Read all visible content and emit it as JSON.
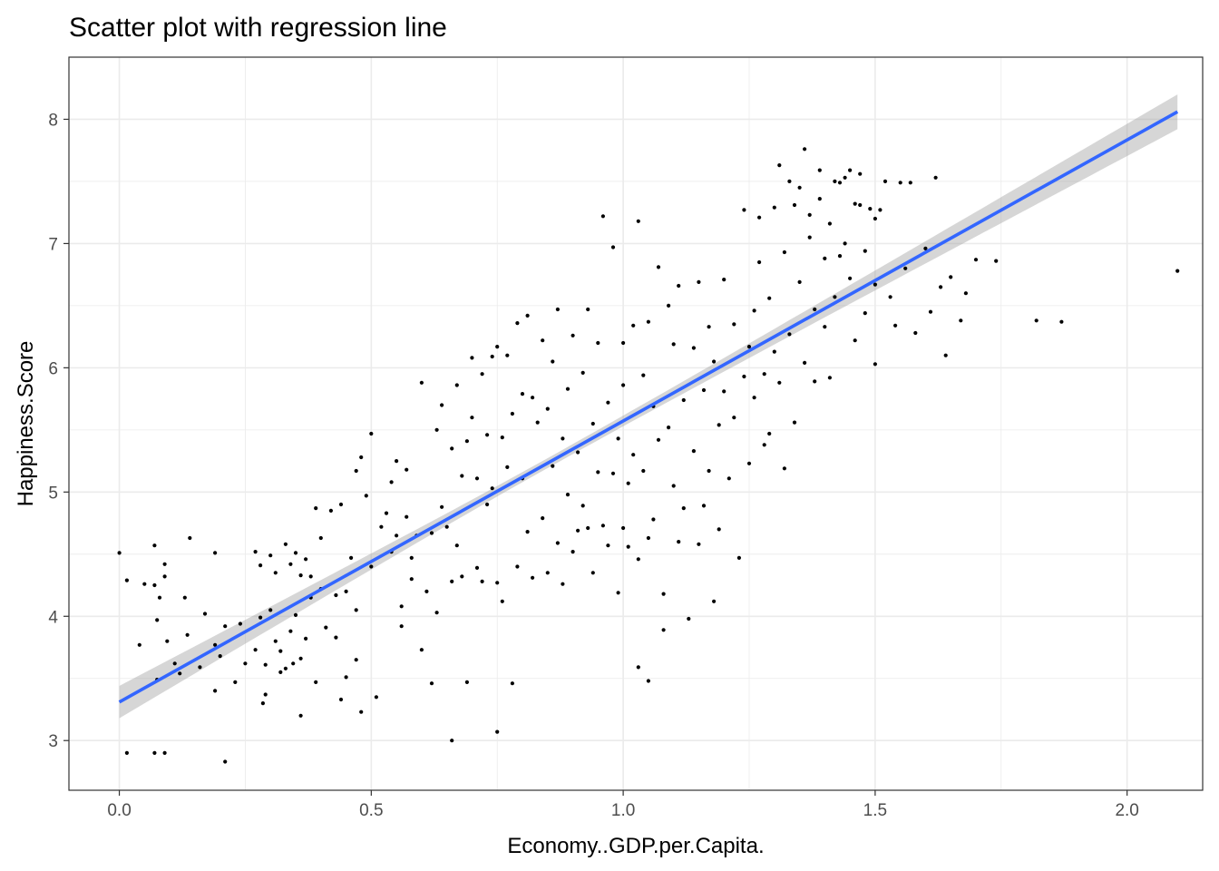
{
  "chart_data": {
    "type": "scatter",
    "title": "Scatter plot with regression line",
    "xlabel": "Economy..GDP.per.Capita.",
    "ylabel": "Happiness.Score",
    "xlim": [
      -0.1,
      2.15
    ],
    "ylim": [
      2.6,
      8.5
    ],
    "x_ticks": [
      0.0,
      0.5,
      1.0,
      1.5,
      2.0
    ],
    "x_tick_labels": [
      "0.0",
      "0.5",
      "1.0",
      "1.5",
      "2.0"
    ],
    "y_ticks": [
      3,
      4,
      5,
      6,
      7,
      8
    ],
    "y_tick_labels": [
      "3",
      "4",
      "5",
      "6",
      "7",
      "8"
    ],
    "grid": true,
    "legend": "none",
    "colors": {
      "points": "#000000",
      "regression_line": "#3366ff",
      "confidence_band": "#999999",
      "grid": "#ebebeb",
      "panel_border": "#333333"
    },
    "regression": {
      "method": "lm",
      "x_range": [
        0.0,
        2.1
      ],
      "intercept": 3.31,
      "slope": 2.262,
      "ci_halfwidth_at_ends": [
        0.13,
        0.14
      ],
      "ci_halfwidth_at_center": 0.04,
      "center_x": 0.85
    },
    "series": [
      {
        "points": [
          [
            0.0,
            4.51
          ],
          [
            0.015,
            4.29
          ],
          [
            0.015,
            2.9
          ],
          [
            0.04,
            3.77
          ],
          [
            0.05,
            4.26
          ],
          [
            0.07,
            4.57
          ],
          [
            0.07,
            4.25
          ],
          [
            0.075,
            3.97
          ],
          [
            0.075,
            3.49
          ],
          [
            0.07,
            2.9
          ],
          [
            0.09,
            2.9
          ],
          [
            0.08,
            4.15
          ],
          [
            0.09,
            4.32
          ],
          [
            0.09,
            4.42
          ],
          [
            0.095,
            3.8
          ],
          [
            0.11,
            3.62
          ],
          [
            0.12,
            3.54
          ],
          [
            0.13,
            4.15
          ],
          [
            0.135,
            3.85
          ],
          [
            0.14,
            4.63
          ],
          [
            0.16,
            3.59
          ],
          [
            0.17,
            4.02
          ],
          [
            0.19,
            3.4
          ],
          [
            0.19,
            3.77
          ],
          [
            0.19,
            4.51
          ],
          [
            0.2,
            3.68
          ],
          [
            0.21,
            2.83
          ],
          [
            0.21,
            3.92
          ],
          [
            0.23,
            3.47
          ],
          [
            0.24,
            3.94
          ],
          [
            0.25,
            3.62
          ],
          [
            0.27,
            3.73
          ],
          [
            0.27,
            4.52
          ],
          [
            0.28,
            3.99
          ],
          [
            0.28,
            4.41
          ],
          [
            0.285,
            3.3
          ],
          [
            0.29,
            3.37
          ],
          [
            0.29,
            3.61
          ],
          [
            0.3,
            4.49
          ],
          [
            0.3,
            4.05
          ],
          [
            0.31,
            4.35
          ],
          [
            0.31,
            3.8
          ],
          [
            0.32,
            3.72
          ],
          [
            0.32,
            3.55
          ],
          [
            0.33,
            3.58
          ],
          [
            0.33,
            4.58
          ],
          [
            0.34,
            4.42
          ],
          [
            0.34,
            3.88
          ],
          [
            0.345,
            3.62
          ],
          [
            0.35,
            4.51
          ],
          [
            0.35,
            4.01
          ],
          [
            0.36,
            3.2
          ],
          [
            0.36,
            3.66
          ],
          [
            0.36,
            4.33
          ],
          [
            0.37,
            3.82
          ],
          [
            0.37,
            4.46
          ],
          [
            0.38,
            4.32
          ],
          [
            0.38,
            4.15
          ],
          [
            0.39,
            3.47
          ],
          [
            0.39,
            4.87
          ],
          [
            0.4,
            4.22
          ],
          [
            0.4,
            4.63
          ],
          [
            0.41,
            3.91
          ],
          [
            0.42,
            4.85
          ],
          [
            0.43,
            4.17
          ],
          [
            0.43,
            3.83
          ],
          [
            0.44,
            3.33
          ],
          [
            0.44,
            4.9
          ],
          [
            0.45,
            4.2
          ],
          [
            0.45,
            3.51
          ],
          [
            0.46,
            4.47
          ],
          [
            0.47,
            3.65
          ],
          [
            0.47,
            5.17
          ],
          [
            0.47,
            4.05
          ],
          [
            0.48,
            5.28
          ],
          [
            0.48,
            3.23
          ],
          [
            0.49,
            4.97
          ],
          [
            0.5,
            5.47
          ],
          [
            0.5,
            4.4
          ],
          [
            0.51,
            3.35
          ],
          [
            0.52,
            4.72
          ],
          [
            0.53,
            4.83
          ],
          [
            0.54,
            5.08
          ],
          [
            0.54,
            4.52
          ],
          [
            0.55,
            4.65
          ],
          [
            0.55,
            5.25
          ],
          [
            0.56,
            4.08
          ],
          [
            0.56,
            3.92
          ],
          [
            0.57,
            4.8
          ],
          [
            0.57,
            5.18
          ],
          [
            0.58,
            4.3
          ],
          [
            0.58,
            4.47
          ],
          [
            0.59,
            4.65
          ],
          [
            0.6,
            5.88
          ],
          [
            0.6,
            3.73
          ],
          [
            0.61,
            4.2
          ],
          [
            0.62,
            4.67
          ],
          [
            0.62,
            3.46
          ],
          [
            0.63,
            5.5
          ],
          [
            0.63,
            4.03
          ],
          [
            0.64,
            5.7
          ],
          [
            0.64,
            4.88
          ],
          [
            0.65,
            4.72
          ],
          [
            0.66,
            5.35
          ],
          [
            0.66,
            4.28
          ],
          [
            0.66,
            3.0
          ],
          [
            0.67,
            5.86
          ],
          [
            0.67,
            4.57
          ],
          [
            0.68,
            5.13
          ],
          [
            0.68,
            4.32
          ],
          [
            0.69,
            5.41
          ],
          [
            0.69,
            3.47
          ],
          [
            0.7,
            6.08
          ],
          [
            0.7,
            5.6
          ],
          [
            0.71,
            5.11
          ],
          [
            0.71,
            4.39
          ],
          [
            0.72,
            5.95
          ],
          [
            0.72,
            4.28
          ],
          [
            0.73,
            5.46
          ],
          [
            0.73,
            4.9
          ],
          [
            0.74,
            6.09
          ],
          [
            0.74,
            5.03
          ],
          [
            0.75,
            6.17
          ],
          [
            0.75,
            4.27
          ],
          [
            0.75,
            3.07
          ],
          [
            0.76,
            5.44
          ],
          [
            0.76,
            4.12
          ],
          [
            0.77,
            6.1
          ],
          [
            0.77,
            5.2
          ],
          [
            0.78,
            5.63
          ],
          [
            0.78,
            3.46
          ],
          [
            0.79,
            4.4
          ],
          [
            0.79,
            6.36
          ],
          [
            0.8,
            5.79
          ],
          [
            0.8,
            5.11
          ],
          [
            0.81,
            6.42
          ],
          [
            0.81,
            4.68
          ],
          [
            0.82,
            5.76
          ],
          [
            0.82,
            4.31
          ],
          [
            0.83,
            5.56
          ],
          [
            0.84,
            6.22
          ],
          [
            0.84,
            4.79
          ],
          [
            0.85,
            5.67
          ],
          [
            0.85,
            4.35
          ],
          [
            0.86,
            6.05
          ],
          [
            0.86,
            5.21
          ],
          [
            0.87,
            4.59
          ],
          [
            0.87,
            6.47
          ],
          [
            0.88,
            5.43
          ],
          [
            0.88,
            4.26
          ],
          [
            0.89,
            5.83
          ],
          [
            0.89,
            4.98
          ],
          [
            0.9,
            6.26
          ],
          [
            0.9,
            4.52
          ],
          [
            0.91,
            5.32
          ],
          [
            0.91,
            4.69
          ],
          [
            0.92,
            5.96
          ],
          [
            0.92,
            4.89
          ],
          [
            0.93,
            6.47
          ],
          [
            0.93,
            4.71
          ],
          [
            0.94,
            5.55
          ],
          [
            0.94,
            4.35
          ],
          [
            0.95,
            6.2
          ],
          [
            0.95,
            5.16
          ],
          [
            0.96,
            7.22
          ],
          [
            0.96,
            4.73
          ],
          [
            0.97,
            5.72
          ],
          [
            0.97,
            4.57
          ],
          [
            0.98,
            5.15
          ],
          [
            0.98,
            6.97
          ],
          [
            0.99,
            5.43
          ],
          [
            0.99,
            4.19
          ],
          [
            1.0,
            5.86
          ],
          [
            1.0,
            4.71
          ],
          [
            1.0,
            6.2
          ],
          [
            1.01,
            5.07
          ],
          [
            1.01,
            4.56
          ],
          [
            1.02,
            6.34
          ],
          [
            1.02,
            5.3
          ],
          [
            1.03,
            7.18
          ],
          [
            1.03,
            4.46
          ],
          [
            1.03,
            3.59
          ],
          [
            1.04,
            5.94
          ],
          [
            1.04,
            5.17
          ],
          [
            1.05,
            6.37
          ],
          [
            1.05,
            4.63
          ],
          [
            1.05,
            3.48
          ],
          [
            1.06,
            5.69
          ],
          [
            1.06,
            4.78
          ],
          [
            1.07,
            6.81
          ],
          [
            1.07,
            5.42
          ],
          [
            1.08,
            4.18
          ],
          [
            1.08,
            3.89
          ],
          [
            1.09,
            6.5
          ],
          [
            1.09,
            5.52
          ],
          [
            1.1,
            6.19
          ],
          [
            1.1,
            5.05
          ],
          [
            1.11,
            6.66
          ],
          [
            1.11,
            4.6
          ],
          [
            1.12,
            5.74
          ],
          [
            1.12,
            4.87
          ],
          [
            1.13,
            3.98
          ],
          [
            1.14,
            6.16
          ],
          [
            1.14,
            5.33
          ],
          [
            1.15,
            6.69
          ],
          [
            1.15,
            4.58
          ],
          [
            1.16,
            5.82
          ],
          [
            1.16,
            4.89
          ],
          [
            1.17,
            6.33
          ],
          [
            1.17,
            5.17
          ],
          [
            1.18,
            4.12
          ],
          [
            1.18,
            6.05
          ],
          [
            1.19,
            5.54
          ],
          [
            1.19,
            4.7
          ],
          [
            1.2,
            6.71
          ],
          [
            1.2,
            5.81
          ],
          [
            1.21,
            5.11
          ],
          [
            1.22,
            6.35
          ],
          [
            1.22,
            5.6
          ],
          [
            1.23,
            4.47
          ],
          [
            1.24,
            7.27
          ],
          [
            1.24,
            5.93
          ],
          [
            1.25,
            6.17
          ],
          [
            1.25,
            5.23
          ],
          [
            1.26,
            6.46
          ],
          [
            1.26,
            5.76
          ],
          [
            1.27,
            7.21
          ],
          [
            1.27,
            6.85
          ],
          [
            1.28,
            5.38
          ],
          [
            1.28,
            5.95
          ],
          [
            1.29,
            6.56
          ],
          [
            1.29,
            5.47
          ],
          [
            1.3,
            7.29
          ],
          [
            1.3,
            6.13
          ],
          [
            1.31,
            7.63
          ],
          [
            1.31,
            5.88
          ],
          [
            1.32,
            6.93
          ],
          [
            1.32,
            5.19
          ],
          [
            1.33,
            7.5
          ],
          [
            1.33,
            6.27
          ],
          [
            1.34,
            7.31
          ],
          [
            1.34,
            5.56
          ],
          [
            1.35,
            7.45
          ],
          [
            1.35,
            6.69
          ],
          [
            1.36,
            7.76
          ],
          [
            1.36,
            6.04
          ],
          [
            1.37,
            7.23
          ],
          [
            1.37,
            7.05
          ],
          [
            1.38,
            6.47
          ],
          [
            1.38,
            5.89
          ],
          [
            1.39,
            7.59
          ],
          [
            1.39,
            7.36
          ],
          [
            1.4,
            6.88
          ],
          [
            1.4,
            6.33
          ],
          [
            1.41,
            7.16
          ],
          [
            1.41,
            5.92
          ],
          [
            1.42,
            7.5
          ],
          [
            1.42,
            6.57
          ],
          [
            1.43,
            7.49
          ],
          [
            1.43,
            6.9
          ],
          [
            1.44,
            7.53
          ],
          [
            1.44,
            7.0
          ],
          [
            1.45,
            7.59
          ],
          [
            1.45,
            6.72
          ],
          [
            1.46,
            7.32
          ],
          [
            1.46,
            6.22
          ],
          [
            1.47,
            7.56
          ],
          [
            1.47,
            7.31
          ],
          [
            1.48,
            6.94
          ],
          [
            1.48,
            6.44
          ],
          [
            1.49,
            7.28
          ],
          [
            1.5,
            7.2
          ],
          [
            1.5,
            6.67
          ],
          [
            1.5,
            6.03
          ],
          [
            1.51,
            7.27
          ],
          [
            1.52,
            7.5
          ],
          [
            1.53,
            6.57
          ],
          [
            1.54,
            6.34
          ],
          [
            1.55,
            7.49
          ],
          [
            1.56,
            6.8
          ],
          [
            1.57,
            7.49
          ],
          [
            1.58,
            6.28
          ],
          [
            1.6,
            6.96
          ],
          [
            1.61,
            6.45
          ],
          [
            1.62,
            7.53
          ],
          [
            1.63,
            6.65
          ],
          [
            1.64,
            6.1
          ],
          [
            1.65,
            6.73
          ],
          [
            1.67,
            6.38
          ],
          [
            1.68,
            6.6
          ],
          [
            1.7,
            6.87
          ],
          [
            1.74,
            6.86
          ],
          [
            1.82,
            6.38
          ],
          [
            1.87,
            6.37
          ],
          [
            2.1,
            6.78
          ]
        ]
      }
    ]
  }
}
